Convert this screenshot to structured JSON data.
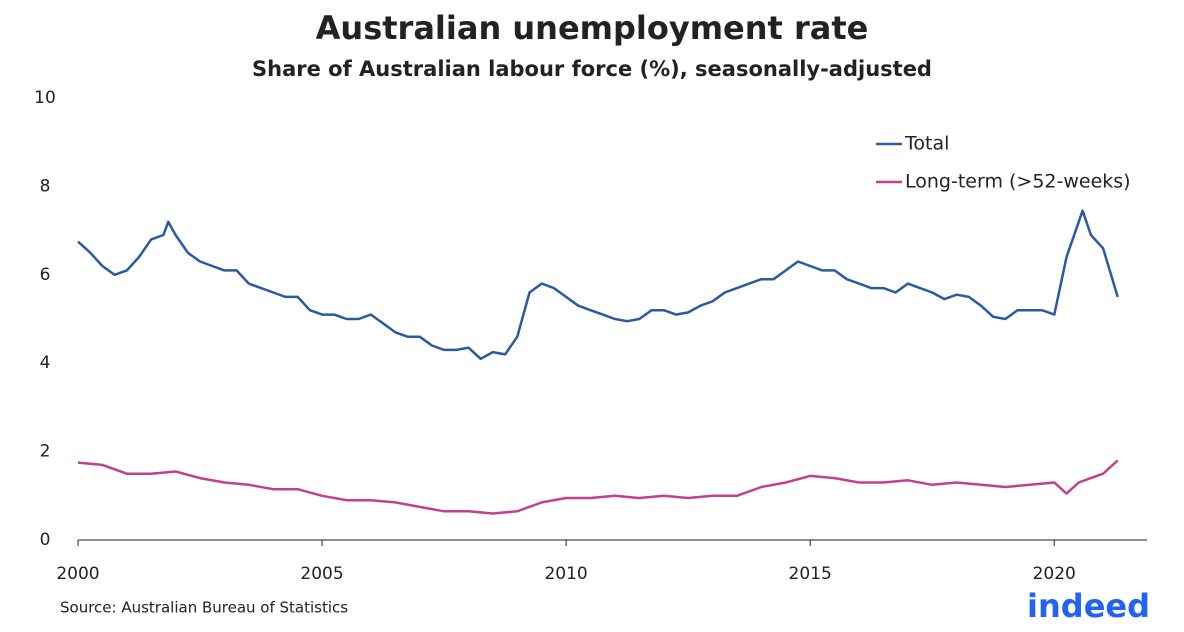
{
  "chart_data": {
    "type": "line",
    "title": "Australian unemployment rate",
    "subtitle": "Share of Australian labour force (%), seasonally-adjusted",
    "source": "Source: Australian Bureau of Statistics",
    "logo": "indeed",
    "xlim": [
      2000,
      2021.9
    ],
    "xticks": [
      2000,
      2005,
      2010,
      2015,
      2020
    ],
    "ylim": [
      0,
      10
    ],
    "yticks": [
      0,
      2,
      4,
      6,
      8,
      10
    ],
    "grid": false,
    "legend": "upper right",
    "series": [
      {
        "name": "Total",
        "color": "#2b59a3",
        "x": [
          2000,
          2000.25,
          2000.5,
          2000.75,
          2001,
          2001.25,
          2001.5,
          2001.75,
          2001.85,
          2002,
          2002.25,
          2002.5,
          2002.75,
          2003,
          2003.25,
          2003.5,
          2003.75,
          2004,
          2004.25,
          2004.5,
          2004.75,
          2005,
          2005.25,
          2005.5,
          2005.75,
          2006,
          2006.25,
          2006.5,
          2006.75,
          2007,
          2007.25,
          2007.5,
          2007.75,
          2008,
          2008.25,
          2008.5,
          2008.75,
          2009,
          2009.25,
          2009.5,
          2009.75,
          2010,
          2010.25,
          2010.5,
          2010.75,
          2011,
          2011.25,
          2011.5,
          2011.75,
          2012,
          2012.25,
          2012.5,
          2012.75,
          2013,
          2013.25,
          2013.5,
          2013.75,
          2014,
          2014.25,
          2014.5,
          2014.75,
          2015,
          2015.25,
          2015.5,
          2015.75,
          2016,
          2016.25,
          2016.5,
          2016.75,
          2017,
          2017.25,
          2017.5,
          2017.75,
          2018,
          2018.25,
          2018.5,
          2018.75,
          2019,
          2019.25,
          2019.5,
          2019.75,
          2020,
          2020.25,
          2020.58,
          2020.75,
          2021,
          2021.3
        ],
        "values": [
          6.75,
          6.5,
          6.2,
          6.0,
          6.1,
          6.4,
          6.8,
          6.9,
          7.2,
          6.9,
          6.5,
          6.3,
          6.2,
          6.1,
          6.1,
          5.8,
          5.7,
          5.6,
          5.5,
          5.5,
          5.2,
          5.1,
          5.1,
          5.0,
          5.0,
          5.1,
          4.9,
          4.7,
          4.6,
          4.6,
          4.4,
          4.3,
          4.3,
          4.35,
          4.1,
          4.25,
          4.2,
          4.6,
          5.6,
          5.8,
          5.7,
          5.5,
          5.3,
          5.2,
          5.1,
          5.0,
          4.95,
          5.0,
          5.2,
          5.2,
          5.1,
          5.15,
          5.3,
          5.4,
          5.6,
          5.7,
          5.8,
          5.9,
          5.9,
          6.1,
          6.3,
          6.2,
          6.1,
          6.1,
          5.9,
          5.8,
          5.7,
          5.7,
          5.6,
          5.8,
          5.7,
          5.6,
          5.45,
          5.55,
          5.5,
          5.3,
          5.05,
          5.0,
          5.2,
          5.2,
          5.2,
          5.1,
          6.4,
          7.45,
          6.9,
          6.6,
          5.5
        ]
      },
      {
        "name": "Long-term (>52-weeks)",
        "color": "#c2408d",
        "x": [
          2000,
          2000.5,
          2001,
          2001.5,
          2002,
          2002.5,
          2003,
          2003.5,
          2004,
          2004.5,
          2005,
          2005.5,
          2006,
          2006.5,
          2007,
          2007.5,
          2008,
          2008.5,
          2009,
          2009.5,
          2010,
          2010.5,
          2011,
          2011.5,
          2012,
          2012.5,
          2013,
          2013.5,
          2014,
          2014.5,
          2015,
          2015.5,
          2016,
          2016.5,
          2017,
          2017.5,
          2018,
          2018.5,
          2019,
          2019.5,
          2020,
          2020.25,
          2020.5,
          2020.75,
          2021,
          2021.3
        ],
        "values": [
          1.75,
          1.7,
          1.5,
          1.5,
          1.55,
          1.4,
          1.3,
          1.25,
          1.15,
          1.15,
          1.0,
          0.9,
          0.9,
          0.85,
          0.75,
          0.65,
          0.65,
          0.6,
          0.65,
          0.85,
          0.95,
          0.95,
          1.0,
          0.95,
          1.0,
          0.95,
          1.0,
          1.0,
          1.2,
          1.3,
          1.45,
          1.4,
          1.3,
          1.3,
          1.35,
          1.25,
          1.3,
          1.25,
          1.2,
          1.25,
          1.3,
          1.05,
          1.3,
          1.4,
          1.5,
          1.8
        ]
      }
    ]
  }
}
